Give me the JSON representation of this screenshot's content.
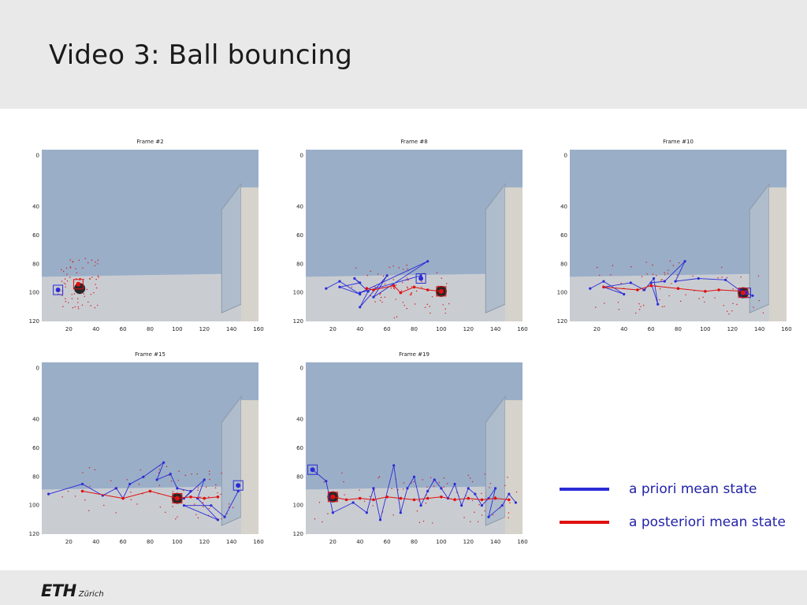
{
  "slide": {
    "title": "Video 3: Ball bouncing",
    "logo_main": "ETH",
    "logo_sub": "Zürich"
  },
  "colors": {
    "prior": "#2b2bd6",
    "posterior": "#e01010",
    "background": "#9aaec8",
    "floor": "#c9cdd2"
  },
  "legend": {
    "prior_label": "a priori mean state",
    "posterior_label": "a posteriori mean state"
  },
  "panels": [
    {
      "title": "Frame #2",
      "x_ticks": [
        "20",
        "40",
        "60",
        "80",
        "100",
        "120",
        "140",
        "160"
      ],
      "y_ticks": [
        "0",
        "40",
        "60",
        "80",
        "100",
        "120"
      ],
      "prior_path": [
        [
          12,
          98
        ]
      ],
      "posterior_path": [
        [
          27,
          94
        ]
      ],
      "prior_box": [
        12,
        98
      ],
      "posterior_box": [
        27,
        94
      ],
      "ball": [
        28,
        97
      ]
    },
    {
      "title": "Frame #8",
      "x_ticks": [
        "20",
        "40",
        "60",
        "80",
        "100",
        "120",
        "140",
        "160"
      ],
      "y_ticks": [
        "0",
        "40",
        "60",
        "80",
        "100",
        "120"
      ],
      "prior_path": [
        [
          15,
          97
        ],
        [
          25,
          92
        ],
        [
          40,
          101
        ],
        [
          25,
          96
        ],
        [
          40,
          93
        ],
        [
          36,
          90
        ],
        [
          46,
          99
        ],
        [
          40,
          110
        ],
        [
          60,
          88
        ],
        [
          50,
          103
        ],
        [
          90,
          78
        ],
        [
          40,
          100
        ],
        [
          85,
          88
        ]
      ],
      "posterior_path": [
        [
          45,
          97
        ],
        [
          50,
          98
        ],
        [
          65,
          95
        ],
        [
          70,
          100
        ],
        [
          80,
          96
        ],
        [
          90,
          98
        ],
        [
          100,
          99
        ]
      ],
      "prior_box": [
        85,
        90
      ],
      "posterior_box": [
        100,
        99
      ],
      "ball": [
        100,
        99
      ]
    },
    {
      "title": "Frame #10",
      "x_ticks": [
        "20",
        "40",
        "60",
        "80",
        "100",
        "120",
        "140",
        "160"
      ],
      "y_ticks": [
        "0",
        "40",
        "60",
        "80",
        "100",
        "120"
      ],
      "prior_path": [
        [
          15,
          97
        ],
        [
          25,
          92
        ],
        [
          40,
          101
        ],
        [
          25,
          96
        ],
        [
          45,
          93
        ],
        [
          55,
          98
        ],
        [
          62,
          90
        ],
        [
          65,
          108
        ],
        [
          60,
          93
        ],
        [
          70,
          92
        ],
        [
          85,
          78
        ],
        [
          78,
          92
        ],
        [
          95,
          90
        ],
        [
          115,
          91
        ],
        [
          125,
          98
        ],
        [
          135,
          102
        ]
      ],
      "posterior_path": [
        [
          25,
          96
        ],
        [
          50,
          98
        ],
        [
          60,
          95
        ],
        [
          80,
          97
        ],
        [
          100,
          99
        ],
        [
          110,
          98
        ],
        [
          130,
          99
        ]
      ],
      "prior_box": [
        130,
        100
      ],
      "posterior_box": [
        128,
        100
      ],
      "ball": [
        128,
        100
      ]
    },
    {
      "title": "Frame #15",
      "x_ticks": [
        "20",
        "40",
        "60",
        "80",
        "100",
        "120",
        "140",
        "160"
      ],
      "y_ticks": [
        "0",
        "40",
        "60",
        "80",
        "100",
        "120"
      ],
      "prior_path": [
        [
          5,
          92
        ],
        [
          30,
          85
        ],
        [
          45,
          93
        ],
        [
          55,
          88
        ],
        [
          60,
          95
        ],
        [
          65,
          85
        ],
        [
          75,
          80
        ],
        [
          90,
          70
        ],
        [
          85,
          82
        ],
        [
          95,
          78
        ],
        [
          100,
          88
        ],
        [
          110,
          90
        ],
        [
          105,
          95
        ],
        [
          120,
          82
        ],
        [
          115,
          95
        ],
        [
          130,
          110
        ],
        [
          105,
          100
        ],
        [
          125,
          100
        ],
        [
          135,
          108
        ],
        [
          145,
          90
        ]
      ],
      "posterior_path": [
        [
          30,
          90
        ],
        [
          60,
          95
        ],
        [
          80,
          90
        ],
        [
          100,
          95
        ],
        [
          110,
          94
        ],
        [
          120,
          95
        ],
        [
          130,
          94
        ]
      ],
      "prior_box": [
        145,
        86
      ],
      "posterior_box": [
        100,
        95
      ],
      "ball": [
        100,
        95
      ]
    },
    {
      "title": "Frame #19",
      "x_ticks": [
        "20",
        "40",
        "60",
        "80",
        "100",
        "120",
        "140",
        "160"
      ],
      "y_ticks": [
        "0",
        "40",
        "60",
        "80",
        "100",
        "120"
      ],
      "prior_path": [
        [
          5,
          75
        ],
        [
          15,
          83
        ],
        [
          20,
          105
        ],
        [
          35,
          98
        ],
        [
          45,
          105
        ],
        [
          50,
          88
        ],
        [
          55,
          110
        ],
        [
          65,
          72
        ],
        [
          70,
          105
        ],
        [
          75,
          88
        ],
        [
          80,
          80
        ],
        [
          85,
          100
        ],
        [
          90,
          90
        ],
        [
          95,
          82
        ],
        [
          100,
          88
        ],
        [
          105,
          95
        ],
        [
          110,
          85
        ],
        [
          115,
          100
        ],
        [
          120,
          88
        ],
        [
          125,
          92
        ],
        [
          130,
          100
        ],
        [
          135,
          95
        ],
        [
          140,
          88
        ],
        [
          135,
          108
        ],
        [
          145,
          100
        ],
        [
          150,
          92
        ],
        [
          155,
          98
        ]
      ],
      "posterior_path": [
        [
          20,
          94
        ],
        [
          30,
          96
        ],
        [
          40,
          95
        ],
        [
          50,
          96
        ],
        [
          60,
          94
        ],
        [
          70,
          95
        ],
        [
          80,
          96
        ],
        [
          90,
          95
        ],
        [
          100,
          94
        ],
        [
          110,
          96
        ],
        [
          120,
          95
        ],
        [
          130,
          96
        ],
        [
          140,
          95
        ],
        [
          150,
          96
        ]
      ],
      "prior_box": [
        5,
        75
      ],
      "posterior_box": [
        20,
        94
      ],
      "ball": [
        20,
        94
      ]
    }
  ]
}
